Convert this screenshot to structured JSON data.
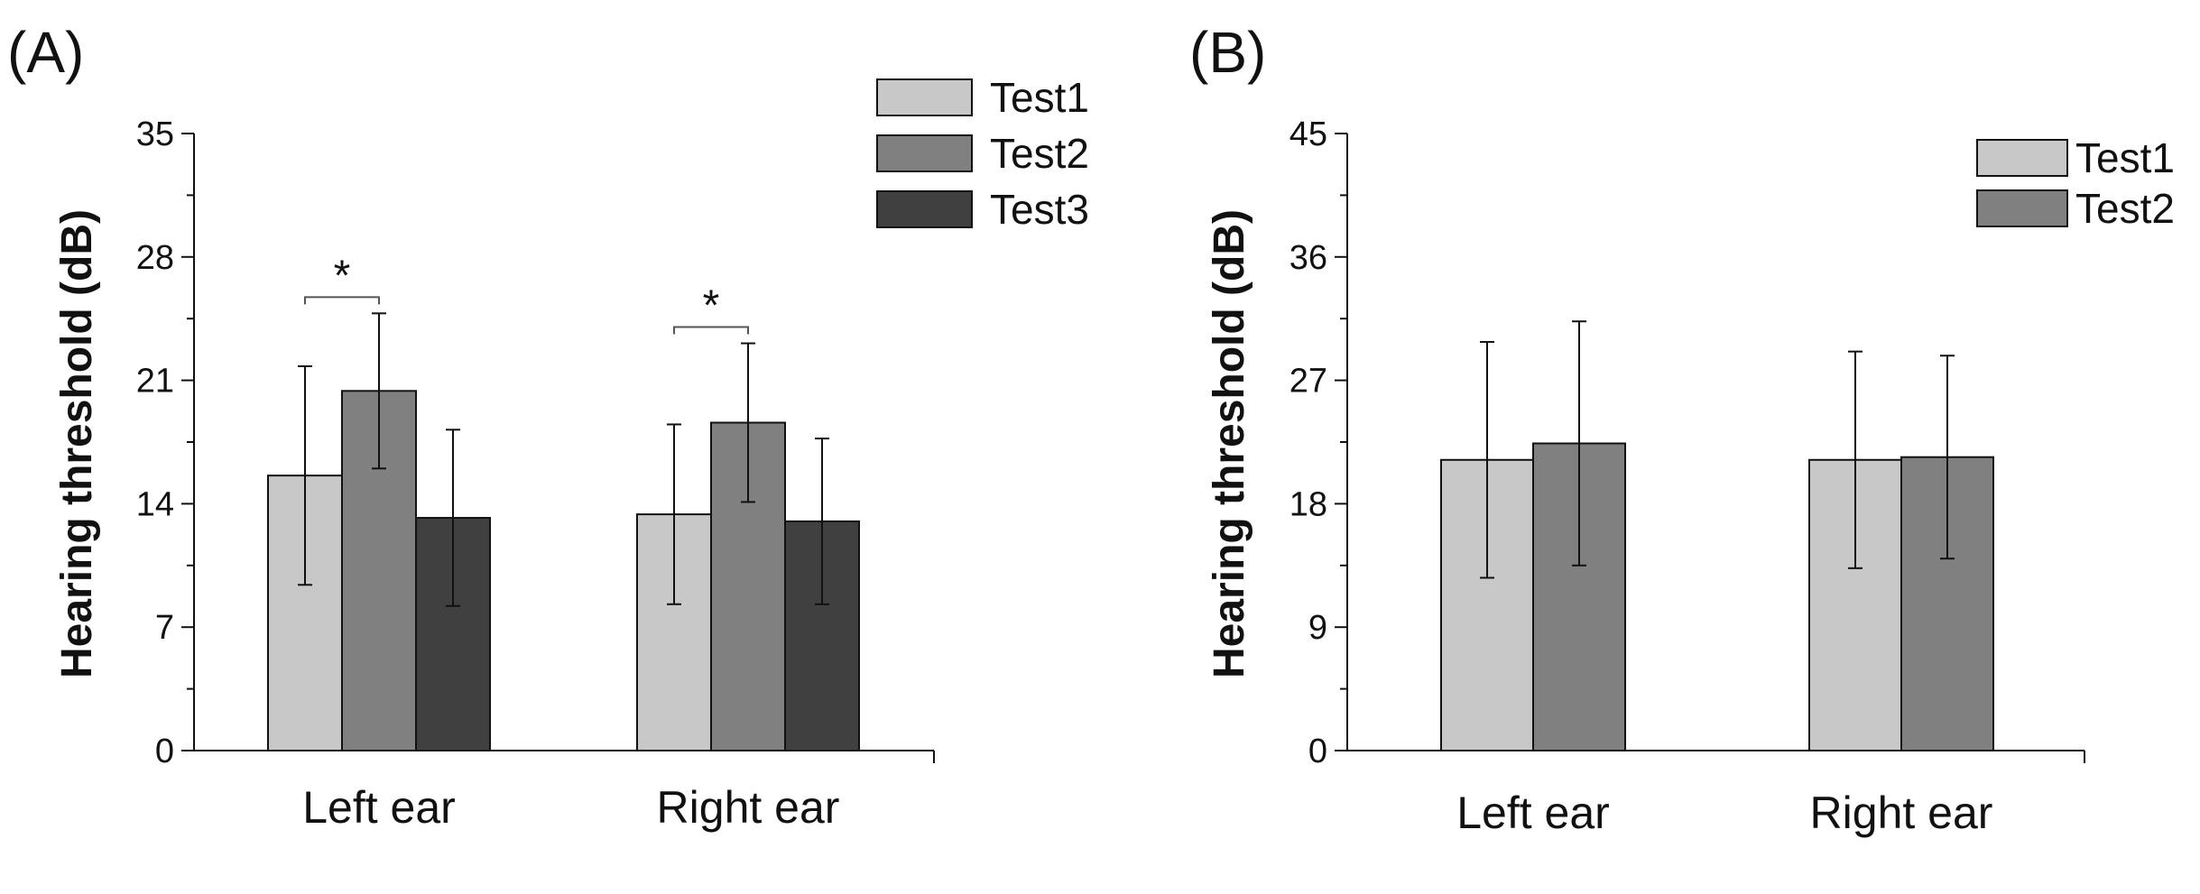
{
  "colors": {
    "test1": "#c8c8c8",
    "test2": "#808080",
    "test3": "#404040",
    "axis": "#111111"
  },
  "chart_data": [
    {
      "panel": "(A)",
      "type": "bar",
      "ylabel": "Hearing threshold (dB)",
      "ylim": [
        0,
        35
      ],
      "yticks": [
        0,
        7,
        14,
        21,
        28,
        35
      ],
      "categories": [
        "Left ear",
        "Right ear"
      ],
      "legend_position": "top-right",
      "series": [
        {
          "name": "Test1",
          "color_key": "test1",
          "values": [
            15.6,
            13.4
          ],
          "error": [
            6.2,
            5.1
          ]
        },
        {
          "name": "Test2",
          "color_key": "test2",
          "values": [
            20.4,
            18.6
          ],
          "error": [
            4.4,
            4.5
          ]
        },
        {
          "name": "Test3",
          "color_key": "test3",
          "values": [
            13.2,
            13.0
          ],
          "error": [
            5.0,
            4.7
          ]
        }
      ],
      "significance": [
        {
          "category_index": 0,
          "from_series": 0,
          "to_series": 1,
          "mark": "*"
        },
        {
          "category_index": 1,
          "from_series": 0,
          "to_series": 1,
          "mark": "*"
        }
      ]
    },
    {
      "panel": "(B)",
      "type": "bar",
      "ylabel": "Hearing threshold (dB)",
      "ylim": [
        0,
        45
      ],
      "yticks": [
        0,
        9,
        18,
        27,
        36,
        45
      ],
      "categories": [
        "Left ear",
        "Right ear"
      ],
      "legend_position": "top-right",
      "series": [
        {
          "name": "Test1",
          "color_key": "test1",
          "values": [
            21.2,
            21.2
          ],
          "error": [
            8.6,
            7.9
          ]
        },
        {
          "name": "Test2",
          "color_key": "test2",
          "values": [
            22.4,
            21.4
          ],
          "error": [
            8.9,
            7.4
          ]
        }
      ],
      "significance": []
    }
  ]
}
